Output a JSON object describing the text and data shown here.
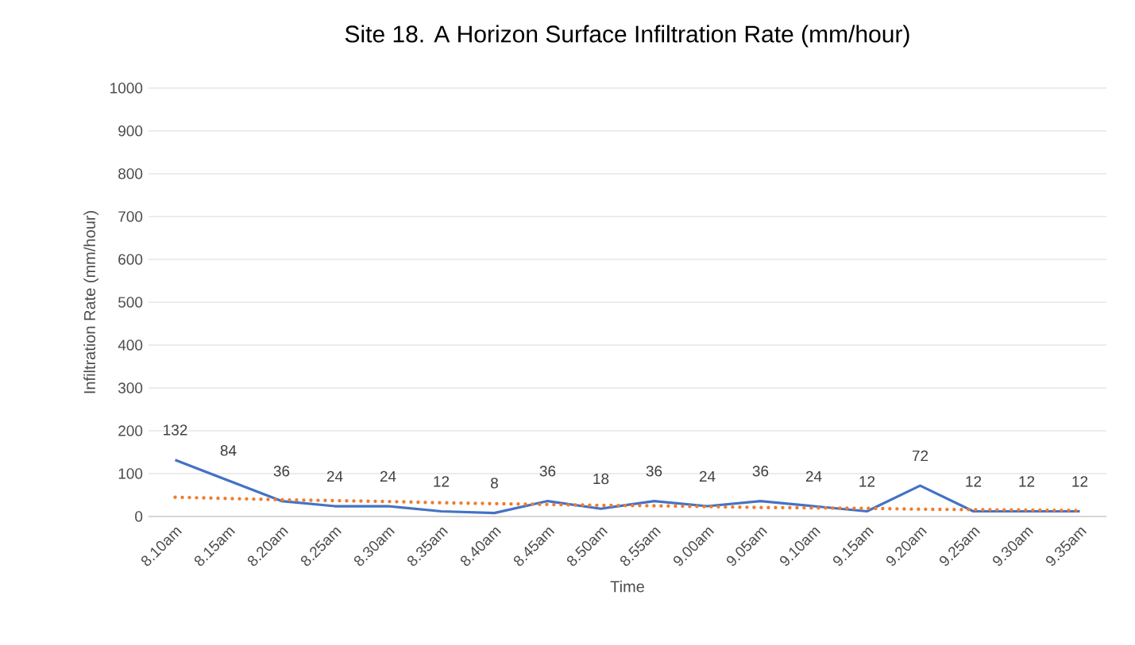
{
  "chart_data": {
    "type": "line",
    "title": "Site 18. A Horizon Surface        Infiltration Rate (mm/hour)",
    "xlabel": "Time",
    "ylabel": "Infiltration Rate (mm/hour)",
    "categories": [
      "8.10am",
      "8.15am",
      "8.20am",
      "8.25am",
      "8.30am",
      "8.35am",
      "8.40am",
      "8.45am",
      "8.50am",
      "8.55am",
      "9.00am",
      "9.05am",
      "9.10am",
      "9.15am",
      "9.20am",
      "9.25am",
      "9.30am",
      "9.35am"
    ],
    "series": [
      {
        "color": "#4472c4",
        "values": [
          132,
          84,
          36,
          24,
          24,
          12,
          8,
          36,
          18,
          36,
          24,
          36,
          24,
          12,
          72,
          12,
          12,
          12
        ],
        "value_labels": [
          "132",
          "84",
          "36",
          "24",
          "24",
          "12",
          "8",
          "36",
          "18",
          "36",
          "24",
          "36",
          "24",
          "12",
          "72",
          "12",
          "12",
          "12"
        ]
      },
      {
        "color": "#ed7d31",
        "line_style": "dotted",
        "values": [
          45,
          42,
          39,
          37,
          35,
          32,
          30,
          28,
          26,
          25,
          23,
          21,
          20,
          19,
          17,
          16,
          15,
          14
        ]
      }
    ],
    "ylim": [
      0,
      1000
    ],
    "yticks": [
      0,
      100,
      200,
      300,
      400,
      500,
      600,
      700,
      800,
      900,
      1000
    ],
    "grid": "y",
    "marker": "none"
  }
}
